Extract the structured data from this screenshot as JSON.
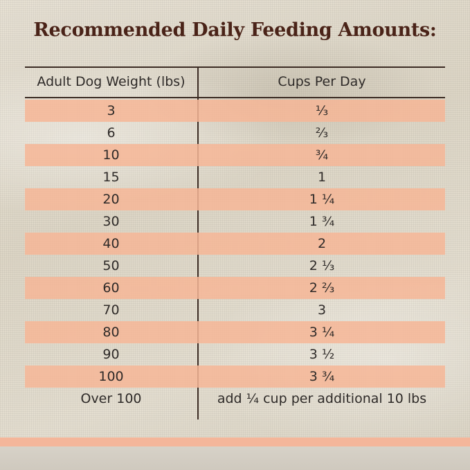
{
  "title": "Recommended Daily Feeding Amounts:",
  "table": {
    "headers": {
      "weight": "Adult Dog Weight (lbs)",
      "cups": "Cups Per Day"
    },
    "rows": [
      {
        "weight": "3",
        "cups": "⅓"
      },
      {
        "weight": "6",
        "cups": "⅔"
      },
      {
        "weight": "10",
        "cups": "¾"
      },
      {
        "weight": "15",
        "cups": "1"
      },
      {
        "weight": "20",
        "cups": "1 ¼"
      },
      {
        "weight": "30",
        "cups": "1 ¾"
      },
      {
        "weight": "40",
        "cups": "2"
      },
      {
        "weight": "50",
        "cups": "2 ⅓"
      },
      {
        "weight": "60",
        "cups": "2 ⅔"
      },
      {
        "weight": "70",
        "cups": "3"
      },
      {
        "weight": "80",
        "cups": "3 ¼"
      },
      {
        "weight": "90",
        "cups": "3 ½"
      },
      {
        "weight": "100",
        "cups": "3 ¾"
      },
      {
        "weight": "Over 100",
        "cups": "add ¼ cup per additional 10 lbs"
      }
    ]
  },
  "colors": {
    "title": "#4a2318",
    "row_shade": "#f6b696",
    "rule": "#3a2a22",
    "bottom_band": "#f4b69a"
  }
}
